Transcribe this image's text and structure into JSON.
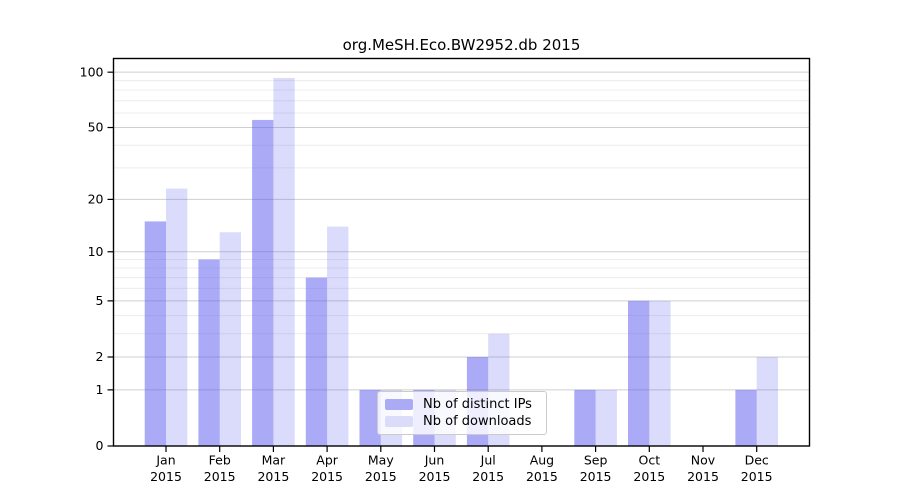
{
  "chart_data": {
    "type": "bar",
    "title": "org.MeSH.Eco.BW2952.db 2015",
    "year_label": "2015",
    "categories": [
      "Jan",
      "Feb",
      "Mar",
      "Apr",
      "May",
      "Jun",
      "Jul",
      "Aug",
      "Sep",
      "Oct",
      "Nov",
      "Dec"
    ],
    "series": [
      {
        "name": "Nb of distinct IPs",
        "key": "distinct-ips",
        "fill": "#5555f0",
        "opacity": 0.5,
        "swatch": "#aaaaf5",
        "values": [
          15,
          9,
          55,
          7,
          1,
          1,
          2,
          0,
          1,
          5,
          0,
          1
        ]
      },
      {
        "name": "Nb of downloads",
        "key": "downloads",
        "fill": "#5555f0",
        "opacity": 0.21,
        "swatch": "#dbdbfa",
        "values": [
          23,
          13,
          93,
          14,
          1,
          1,
          3,
          0,
          1,
          5,
          0,
          2
        ]
      }
    ],
    "y_axis": {
      "scale": "log1p",
      "ticks": [
        0,
        1,
        2,
        5,
        10,
        20,
        50,
        100
      ],
      "minor_ticks": [
        3,
        4,
        6,
        7,
        8,
        9,
        30,
        40,
        60,
        70,
        80,
        90
      ],
      "range": [
        0,
        100
      ]
    },
    "legend": {
      "position": "inside-bottom-center",
      "labels": [
        "Nb of distinct IPs",
        "Nb of downloads"
      ]
    },
    "grid": "horizontal",
    "colors": {
      "grid_major": "#cfcfcf",
      "grid_minor": "#ececec",
      "axis": "#000000",
      "text": "#000000"
    }
  }
}
